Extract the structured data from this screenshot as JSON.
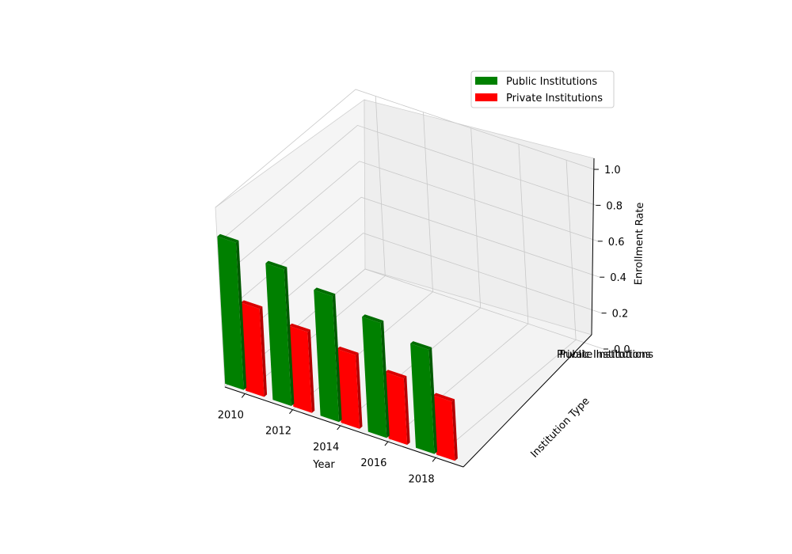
{
  "chart_data": {
    "type": "bar",
    "projection": "3d",
    "categories": [
      "2010",
      "2012",
      "2014",
      "2016",
      "2018"
    ],
    "series": [
      {
        "name": "Public Institutions",
        "values": [
          0.82,
          0.76,
          0.7,
          0.64,
          0.58
        ],
        "color": "#008000"
      },
      {
        "name": "Private Institutions",
        "values": [
          0.49,
          0.45,
          0.41,
          0.37,
          0.33
        ],
        "color": "#ff0000"
      }
    ],
    "xlabel": "Year",
    "ylabel": "Institution Type",
    "zlabel": "Enrollment Rate",
    "y_ticks": [
      "Public Institutions",
      "Private Institutions"
    ],
    "z_ticks": [
      "0.0",
      "0.2",
      "0.4",
      "0.6",
      "0.8",
      "1.0"
    ],
    "zlim": [
      0,
      1
    ],
    "grid": true,
    "legend_position": "top-right"
  }
}
